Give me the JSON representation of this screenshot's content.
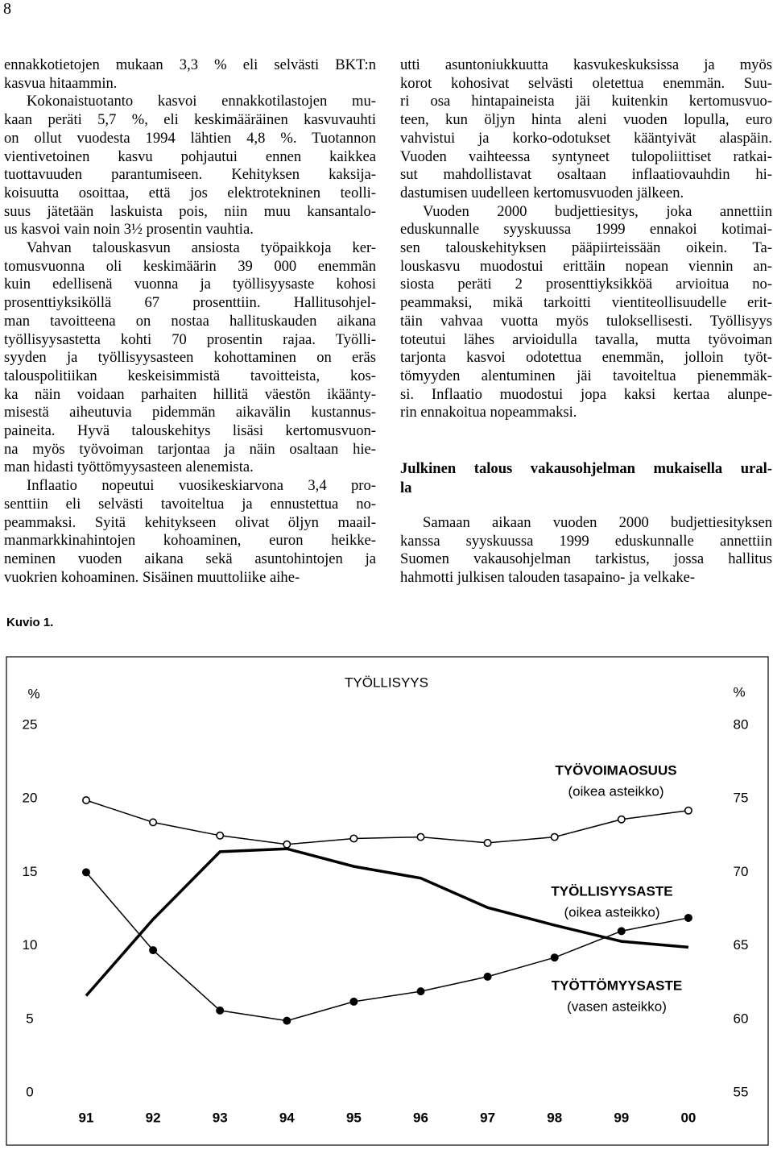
{
  "page_number": "8",
  "left_column": [
    [
      "ennakkotietojen mukaan 3,3 % eli selvästi BKT:n",
      "kasvua hitaammin."
    ],
    [
      "Kokonaistuotanto kasvoi ennakkotilastojen mu-",
      "kaan peräti 5,7 %, eli keskimääräinen kasvuvauhti",
      "on ollut vuodesta 1994 lähtien 4,8 %. Tuotannon",
      "vientivetoinen kasvu pohjautui ennen kaikkea",
      "tuottavuuden parantumiseen. Kehityksen kaksija-",
      "koisuutta osoittaa, että jos elektrotekninen teolli-",
      "suus jätetään laskuista pois, niin muu kansantalo-",
      "us kasvoi vain noin 3½ prosentin vauhtia."
    ],
    [
      "Vahvan talouskasvun ansiosta työpaikkoja ker-",
      "tomusvuonna oli keskimäärin 39 000 enemmän",
      "kuin edellisenä vuonna ja työllisyysaste kohosi",
      "prosenttiyksiköllä 67 prosenttiin. Hallitusohjel-",
      "man tavoitteena on nostaa hallituskauden aikana",
      "työllisyysastetta kohti 70 prosentin rajaa. Työlli-",
      "syyden ja työllisyysasteen kohottaminen on eräs",
      "talouspolitiikan keskeisimmistä tavoitteista, kos-",
      "ka näin voidaan parhaiten hillitä väestön ikäänty-",
      "misestä aiheutuvia pidemmän aikavälin kustannus-",
      "paineita. Hyvä talouskehitys lisäsi kertomusvuon-",
      "na myös työvoiman tarjontaa ja näin osaltaan hie-",
      "man hidasti työttömyysasteen alenemista."
    ],
    [
      "Inflaatio nopeutui vuosikeskiarvona 3,4 pro-",
      "senttiin eli selvästi tavoiteltua ja ennustettua no-",
      "peammaksi. Syitä kehitykseen olivat öljyn maail-",
      "manmarkkinahintojen kohoaminen, euron heikke-",
      "neminen vuoden aikana sekä asuntohintojen ja",
      "vuokrien kohoaminen. Sisäinen muuttoliike aihe-"
    ]
  ],
  "right_column": [
    [
      "utti asuntoniukkuutta kasvukeskuksissa ja myös",
      "korot kohosivat selvästi oletettua enemmän. Suu-",
      "ri osa hintapaineista jäi kuitenkin kertomusvuo-",
      "teen, kun öljyn hinta aleni vuoden lopulla, euro",
      "vahvistui ja korko-odotukset kääntyivät alaspäin.",
      "Vuoden vaihteessa syntyneet tulopoliittiset ratkai-",
      "sut mahdollistavat osaltaan inflaatiovauhdin hi-",
      "dastumisen uudelleen kertomusvuoden jälkeen."
    ],
    [
      "Vuoden 2000 budjettiesitys, joka annettiin",
      "eduskunnalle syyskuussa 1999 ennakoi kotimai-",
      "sen talouskehityksen pääpiirteissään oikein. Ta-",
      "louskasvu muodostui erittäin nopean viennin an-",
      "siosta peräti 2 prosenttiyksikköä arvioitua no-",
      "peammaksi, mikä tarkoitti vientiteollisuudelle erit-",
      "täin vahvaa vuotta myös tuloksellisesti. Työllisyys",
      "toteutui lähes arvioidulla tavalla, mutta työvoiman",
      "tarjonta kasvoi odotettua enemmän, jolloin työt-",
      "tömyyden alentuminen jäi tavoiteltua pienemmäk-",
      "si. Inflaatio muodostui jopa kaksi kertaa alunpe-",
      "rin ennakoitua nopeammaksi."
    ]
  ],
  "section_heading": [
    "Julkinen talous vakausohjelman mukaisella ural-",
    "la"
  ],
  "right_column_after": [
    [
      "Samaan aikaan vuoden 2000 budjettiesityksen",
      "kanssa syyskuussa 1999 eduskunnalle annettiin",
      "Suomen vakausohjelman tarkistus, jossa hallitus",
      "hahmotti julkisen talouden tasapaino- ja velkake-"
    ]
  ],
  "figure_label": "Kuvio 1.",
  "chart_data": {
    "type": "line",
    "title": "TYÖLLISYYS",
    "y_label": "%",
    "y2_label": "%",
    "categories": [
      "91",
      "92",
      "93",
      "94",
      "95",
      "96",
      "97",
      "98",
      "99",
      "00"
    ],
    "ylim": [
      0,
      25
    ],
    "yticks": [
      0,
      5,
      10,
      15,
      20,
      25
    ],
    "y2lim": [
      55,
      80
    ],
    "y2ticks": [
      55,
      60,
      65,
      70,
      75,
      80
    ],
    "series": [
      {
        "name": "TYÖVOIMAOSUUS",
        "note": "(oikea asteikko)",
        "axis": "y2",
        "color": "#000000",
        "marker": "open",
        "linewidth": 1.5,
        "values": [
          74.9,
          73.4,
          72.5,
          71.9,
          72.3,
          72.4,
          72.0,
          72.4,
          73.6,
          74.2
        ]
      },
      {
        "name": "TYÖLLISYYSASTE",
        "note": "(oikea asteikko)",
        "axis": "y2",
        "color": "#000000",
        "marker": "filled",
        "linewidth": 1.5,
        "values": [
          70.0,
          64.7,
          60.6,
          59.9,
          61.2,
          61.9,
          62.9,
          64.2,
          66.0,
          66.9
        ]
      },
      {
        "name": "TYÖTTÖMYYSASTE",
        "note": "(vasen asteikko)",
        "axis": "y",
        "color": "#000000",
        "marker": "none",
        "linewidth": 3.5,
        "values": [
          6.6,
          11.8,
          16.4,
          16.6,
          15.4,
          14.6,
          12.6,
          11.4,
          10.3,
          9.9
        ]
      }
    ]
  }
}
